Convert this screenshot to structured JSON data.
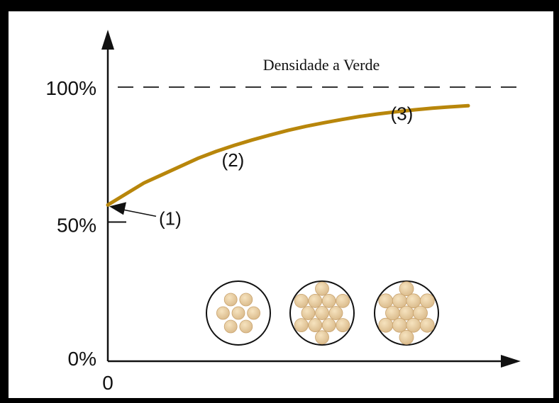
{
  "chart_data": {
    "type": "line",
    "title": "",
    "xlabel": "",
    "ylabel": "",
    "ylim": [
      0,
      100
    ],
    "x_tick_labels": [
      "0"
    ],
    "y_ticks": [
      {
        "value": 0,
        "label": "0%"
      },
      {
        "value": 50,
        "label": "50%"
      },
      {
        "value": 100,
        "label": "100%"
      }
    ],
    "reference_line": {
      "value": 100,
      "label": "Densidade a Verde",
      "style": "dashed"
    },
    "series": [
      {
        "color": "#b8860b",
        "x": [
          0,
          0.05,
          0.1,
          0.15,
          0.2,
          0.25,
          0.3,
          0.35,
          0.4,
          0.45,
          0.5,
          0.55,
          0.6,
          0.65,
          0.7,
          0.75,
          0.8,
          0.85,
          0.9,
          0.95,
          1.0
        ],
        "values": [
          57,
          61,
          65,
          68,
          71,
          74,
          76.5,
          78.7,
          80.7,
          82.5,
          84.2,
          85.7,
          87,
          88.2,
          89.3,
          90.2,
          91,
          91.7,
          92.3,
          92.8,
          93.2
        ]
      }
    ],
    "annotations": [
      {
        "label": "(1)",
        "x": 0.0,
        "y": 57
      },
      {
        "label": "(2)",
        "x": 0.32,
        "y": 70
      },
      {
        "label": "(3)",
        "x": 0.82,
        "y": 87
      }
    ],
    "packing_stages": 3
  }
}
